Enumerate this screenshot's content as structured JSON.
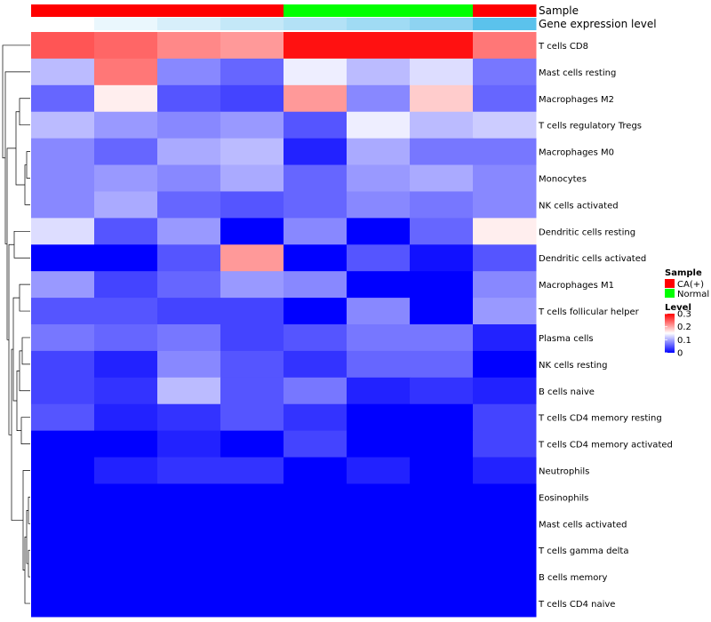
{
  "chart_data": {
    "type": "heatmap",
    "color_scale": {
      "low": "#0000ff",
      "mid": "#ffffff",
      "high": "#ff0000",
      "min": 0,
      "mid_value": 0.15,
      "max": 0.3
    },
    "annotation_tracks": [
      {
        "name": "Sample",
        "values": [
          "CA(+)",
          "CA(+)",
          "CA(+)",
          "CA(+)",
          "Normal",
          "Normal",
          "Normal",
          "CA(+)"
        ]
      },
      {
        "name": "Gene expression level",
        "values": [
          0.0,
          0.1,
          0.2,
          0.3,
          0.45,
          0.55,
          0.7,
          1.0
        ],
        "colors": [
          "#ffffff",
          "#eaf7fd",
          "#d7effa",
          "#c4e8f8",
          "#b3e1f6",
          "#a0dbf4",
          "#8ed3f1",
          "#5bc2ec"
        ]
      }
    ],
    "legend": {
      "sample": {
        "title": "Sample",
        "items": [
          {
            "label": "CA(+)",
            "color": "#ff0000"
          },
          {
            "label": "Normal",
            "color": "#00ff00"
          }
        ]
      },
      "level": {
        "title": "Level",
        "ticks": [
          "0.3",
          "0.2",
          "0.1",
          "0"
        ],
        "tick_values": [
          0.3,
          0.2,
          0.1,
          0
        ]
      }
    },
    "rows": [
      "T cells CD8",
      "Mast cells resting",
      "Macrophages M2",
      "T cells regulatory  Tregs",
      "Macrophages M0",
      "Monocytes",
      "NK cells activated",
      "Dendritic cells resting",
      "Dendritic cells activated",
      "Macrophages M1",
      "T cells follicular helper",
      "Plasma cells",
      "NK cells resting",
      "B cells naive",
      "T cells CD4 memory resting",
      "T cells CD4 memory activated",
      "Neutrophils",
      "Eosinophils",
      "Mast cells activated",
      "T cells gamma delta",
      "B cells memory",
      "T cells CD4 naive"
    ],
    "values": [
      [
        0.25,
        0.24,
        0.22,
        0.21,
        0.29,
        0.29,
        0.29,
        0.23
      ],
      [
        0.11,
        0.23,
        0.08,
        0.06,
        0.14,
        0.11,
        0.13,
        0.07
      ],
      [
        0.06,
        0.16,
        0.05,
        0.04,
        0.21,
        0.08,
        0.18,
        0.06
      ],
      [
        0.11,
        0.09,
        0.08,
        0.09,
        0.05,
        0.14,
        0.11,
        0.12
      ],
      [
        0.08,
        0.06,
        0.1,
        0.11,
        0.02,
        0.1,
        0.07,
        0.07
      ],
      [
        0.08,
        0.09,
        0.08,
        0.1,
        0.06,
        0.09,
        0.1,
        0.08
      ],
      [
        0.08,
        0.1,
        0.06,
        0.05,
        0.06,
        0.08,
        0.07,
        0.08
      ],
      [
        0.13,
        0.05,
        0.09,
        0.0,
        0.08,
        0.0,
        0.06,
        0.16
      ],
      [
        0.0,
        0.0,
        0.05,
        0.21,
        0.0,
        0.05,
        0.01,
        0.05
      ],
      [
        0.09,
        0.04,
        0.06,
        0.09,
        0.08,
        0.0,
        0.0,
        0.08
      ],
      [
        0.05,
        0.05,
        0.04,
        0.04,
        0.0,
        0.08,
        0.0,
        0.09
      ],
      [
        0.07,
        0.06,
        0.07,
        0.04,
        0.05,
        0.07,
        0.07,
        0.02
      ],
      [
        0.04,
        0.02,
        0.08,
        0.05,
        0.03,
        0.06,
        0.06,
        0.0
      ],
      [
        0.04,
        0.03,
        0.11,
        0.05,
        0.07,
        0.02,
        0.03,
        0.02
      ],
      [
        0.05,
        0.02,
        0.03,
        0.05,
        0.03,
        0.0,
        0.0,
        0.04
      ],
      [
        0.0,
        0.0,
        0.02,
        0.0,
        0.04,
        0.0,
        0.0,
        0.04
      ],
      [
        0.0,
        0.02,
        0.03,
        0.03,
        0.0,
        0.02,
        0.0,
        0.02
      ],
      [
        0.0,
        0.0,
        0.0,
        0.0,
        0.0,
        0.0,
        0.0,
        0.0
      ],
      [
        0.0,
        0.0,
        0.0,
        0.0,
        0.0,
        0.0,
        0.0,
        0.0
      ],
      [
        0.0,
        0.0,
        0.0,
        0.0,
        0.0,
        0.0,
        0.0,
        0.0
      ],
      [
        0.0,
        0.0,
        0.0,
        0.0,
        0.0,
        0.0,
        0.0,
        0.0
      ],
      [
        0.0,
        0.0,
        0.0,
        0.0,
        0.0,
        0.0,
        0.0,
        0.0
      ]
    ],
    "row_dendrogram": true,
    "column_dendrogram": false
  }
}
